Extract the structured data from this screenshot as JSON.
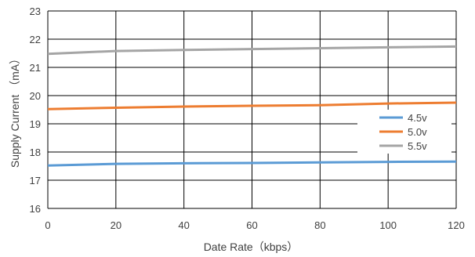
{
  "chart_data": {
    "type": "line",
    "xlabel": "Date Rate（kbps）",
    "ylabel": "Supply Current （mA）",
    "xlim": [
      0,
      120
    ],
    "ylim": [
      16,
      23
    ],
    "x_ticks": [
      0,
      20,
      40,
      60,
      80,
      100,
      120
    ],
    "y_ticks": [
      16,
      17,
      18,
      19,
      20,
      21,
      22,
      23
    ],
    "grid": true,
    "legend_position": "right",
    "series": [
      {
        "name": "4.5v",
        "color": "#5b9bd5",
        "x": [
          0,
          20,
          40,
          60,
          80,
          100,
          120
        ],
        "values": [
          17.52,
          17.58,
          17.6,
          17.61,
          17.63,
          17.65,
          17.66
        ]
      },
      {
        "name": "5.0v",
        "color": "#ed7d31",
        "x": [
          0,
          20,
          40,
          60,
          80,
          100,
          120
        ],
        "values": [
          19.52,
          19.57,
          19.61,
          19.64,
          19.66,
          19.72,
          19.75
        ]
      },
      {
        "name": "5.5v",
        "color": "#a5a5a5",
        "x": [
          0,
          20,
          40,
          60,
          80,
          100,
          120
        ],
        "values": [
          21.48,
          21.58,
          21.62,
          21.65,
          21.68,
          21.71,
          21.74
        ]
      }
    ]
  }
}
